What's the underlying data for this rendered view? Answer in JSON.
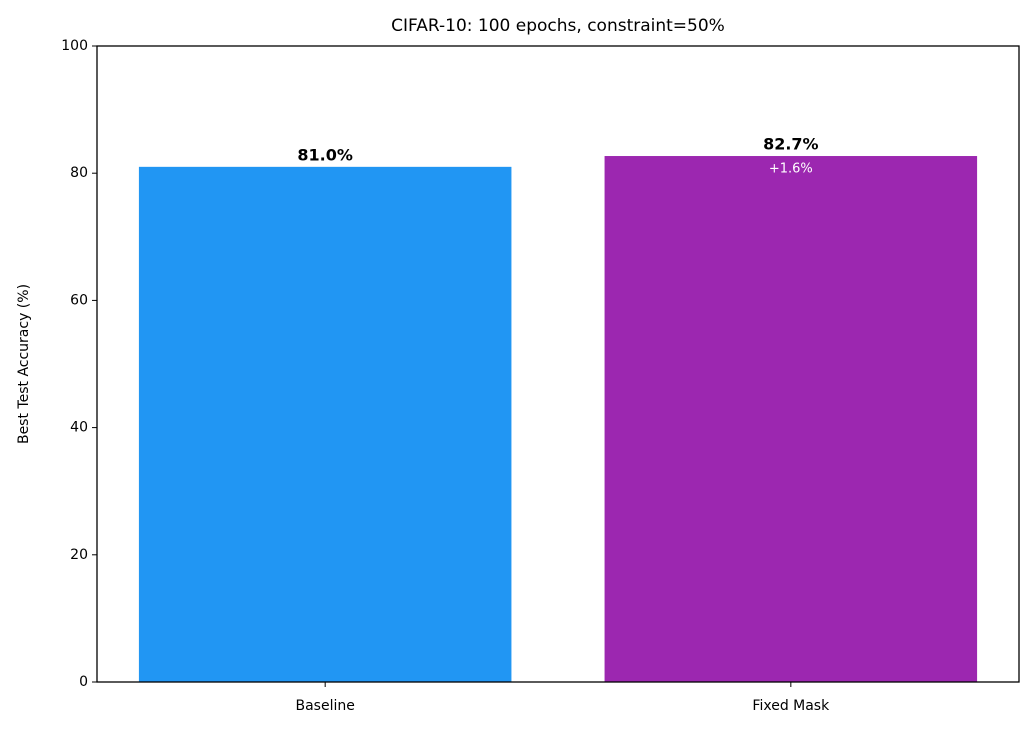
{
  "chart_data": {
    "type": "bar",
    "title": "CIFAR-10: 100 epochs, constraint=50%",
    "y_label": "Best Test Accuracy (%)",
    "categories": [
      "Baseline",
      "Fixed Mask"
    ],
    "values": [
      81.0,
      82.7
    ],
    "value_labels": [
      "81.0%",
      "82.7%"
    ],
    "colors": [
      "#2196f3",
      "#9c27b0"
    ],
    "annotations": [
      {
        "category": "Fixed Mask",
        "text": "+1.6%"
      }
    ],
    "ylim": [
      0,
      100
    ],
    "yticks": [
      0,
      20,
      40,
      60,
      80,
      100
    ],
    "grid": false
  }
}
